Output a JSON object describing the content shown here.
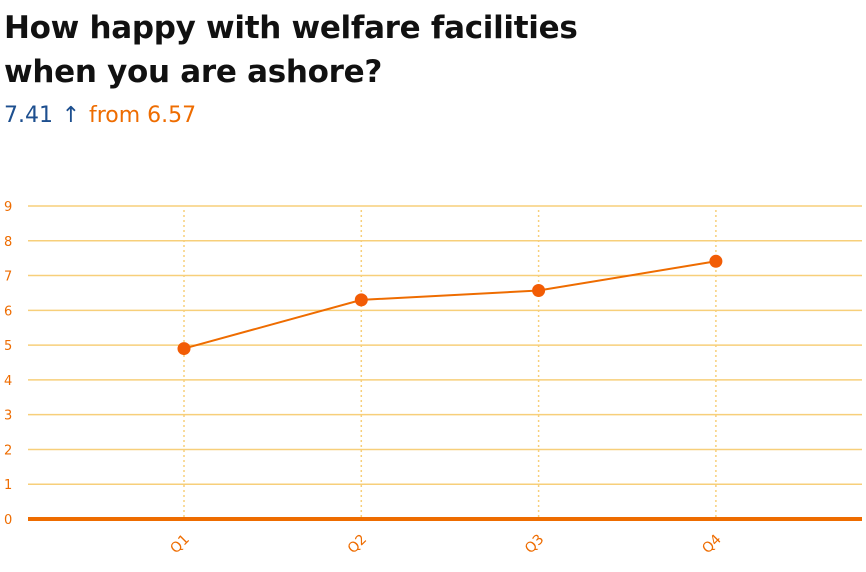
{
  "header": {
    "title_line1": "How happy with welfare facilities",
    "title_line2": "when you are ashore?",
    "current_value": "7.41",
    "trend_icon": "arrow-up-icon",
    "from_text": "from 6.57"
  },
  "colors": {
    "accent": "#ee6c00",
    "marker": "#f25c05",
    "gridline": "#f7cf7a",
    "value_blue": "#1d4f8f",
    "title": "#111111"
  },
  "chart_data": {
    "type": "line",
    "categories": [
      "Q1",
      "Q2",
      "Q3",
      "Q4"
    ],
    "series": [
      {
        "values": [
          4.9,
          6.3,
          6.57,
          7.41
        ]
      }
    ],
    "yticks": [
      "0",
      "1",
      "2",
      "3",
      "4",
      "5",
      "6",
      "7",
      "8",
      "9"
    ],
    "ylim": [
      0,
      9
    ],
    "grid": true
  }
}
